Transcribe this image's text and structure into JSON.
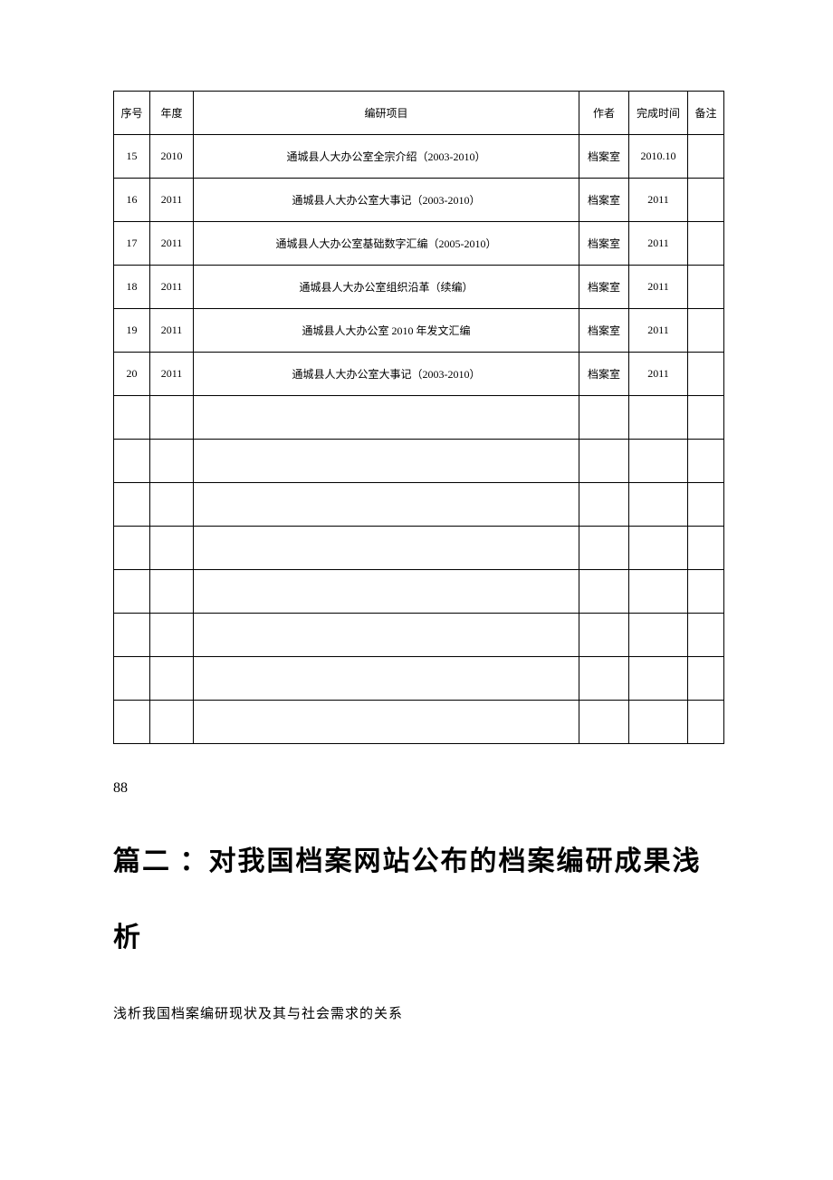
{
  "table": {
    "columns": [
      "序号",
      "年度",
      "编研项目",
      "作者",
      "完成时间",
      "备注"
    ],
    "rows": [
      [
        "15",
        "2010",
        "通城县人大办公室全宗介绍（2003-2010）",
        "档案室",
        "2010.10",
        ""
      ],
      [
        "16",
        "2011",
        "通城县人大办公室大事记（2003-2010）",
        "档案室",
        "2011",
        ""
      ],
      [
        "17",
        "2011",
        "通城县人大办公室基础数字汇编（2005-2010）",
        "档案室",
        "2011",
        ""
      ],
      [
        "18",
        "2011",
        "通城县人大办公室组织沿革（续编）",
        "档案室",
        "2011",
        ""
      ],
      [
        "19",
        "2011",
        "通城县人大办公室 2010 年发文汇编",
        "档案室",
        "2011",
        ""
      ],
      [
        "20",
        "2011",
        "通城县人大办公室大事记（2003-2010）",
        "档案室",
        "2011",
        ""
      ],
      [
        "",
        "",
        "",
        "",
        "",
        ""
      ],
      [
        "",
        "",
        "",
        "",
        "",
        ""
      ],
      [
        "",
        "",
        "",
        "",
        "",
        ""
      ],
      [
        "",
        "",
        "",
        "",
        "",
        ""
      ],
      [
        "",
        "",
        "",
        "",
        "",
        ""
      ],
      [
        "",
        "",
        "",
        "",
        "",
        ""
      ],
      [
        "",
        "",
        "",
        "",
        "",
        ""
      ],
      [
        "",
        "",
        "",
        "",
        "",
        ""
      ]
    ]
  },
  "page_number": "88",
  "section_heading": "篇二 ：对我国档案网站公布的档案编研成果浅析",
  "body_line": "浅析我国档案编研现状及其与社会需求的关系"
}
